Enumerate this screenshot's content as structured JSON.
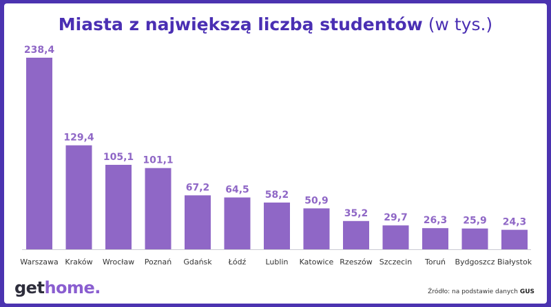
{
  "title": {
    "main": "Miasta z największą liczbą studentów",
    "unit": "(w tys.)"
  },
  "chart_data": {
    "type": "bar",
    "title": "Miasta z największą liczbą studentów (w tys.)",
    "xlabel": "",
    "ylabel": "",
    "categories": [
      "Warszawa",
      "Kraków",
      "Wrocław",
      "Poznań",
      "Gdańsk",
      "Łódź",
      "Lublin",
      "Katowice",
      "Rzeszów",
      "Szczecin",
      "Toruń",
      "Bydgoszcz",
      "Białystok"
    ],
    "values": [
      238.4,
      129.4,
      105.1,
      101.1,
      67.2,
      64.5,
      58.2,
      50.9,
      35.2,
      29.7,
      26.3,
      25.9,
      24.3
    ],
    "value_labels": [
      "238,4",
      "129,4",
      "105,1",
      "101,1",
      "67,2",
      "64,5",
      "58,2",
      "50,9",
      "35,2",
      "29,7",
      "26,3",
      "25,9",
      "24,3"
    ],
    "ylim": [
      0,
      238.4
    ],
    "grid": false,
    "colors": {
      "bar": "#8f67c6",
      "value_label": "#8f67c6",
      "axis": "#c9c9d2"
    }
  },
  "logo": {
    "part1": "get",
    "part2": "home."
  },
  "source": {
    "prefix": "Źródło: na podstawie danych",
    "name": "GUS"
  }
}
